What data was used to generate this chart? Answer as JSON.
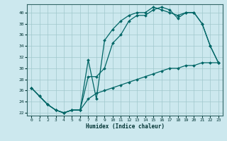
{
  "xlabel": "Humidex (Indice chaleur)",
  "bg_color": "#cce8ee",
  "line_color": "#006666",
  "grid_color": "#a0c8cc",
  "xlim": [
    -0.5,
    23.5
  ],
  "ylim": [
    21.5,
    41.5
  ],
  "yticks": [
    22,
    24,
    26,
    28,
    30,
    32,
    34,
    36,
    38,
    40
  ],
  "xticks": [
    0,
    1,
    2,
    3,
    4,
    5,
    6,
    7,
    8,
    9,
    10,
    11,
    12,
    13,
    14,
    15,
    16,
    17,
    18,
    19,
    20,
    21,
    22,
    23
  ],
  "line1_x": [
    0,
    1,
    2,
    3,
    4,
    5,
    6,
    7,
    8,
    9,
    10,
    11,
    12,
    13,
    14,
    15,
    16,
    17,
    18,
    19,
    20,
    21,
    22,
    23
  ],
  "line1_y": [
    26.5,
    25.0,
    23.5,
    22.5,
    22.0,
    22.5,
    22.5,
    31.5,
    24.5,
    35.0,
    37.0,
    38.5,
    39.5,
    40.0,
    40.0,
    41.0,
    40.5,
    40.0,
    39.5,
    40.0,
    40.0,
    38.0,
    34.0,
    31.0
  ],
  "line2_x": [
    0,
    1,
    2,
    3,
    4,
    5,
    6,
    7,
    8,
    9,
    10,
    11,
    12,
    13,
    14,
    15,
    16,
    17,
    18,
    19,
    20,
    21,
    22,
    23
  ],
  "line2_y": [
    26.5,
    25.0,
    23.5,
    22.5,
    22.0,
    22.5,
    22.5,
    28.5,
    28.5,
    30.0,
    34.5,
    36.0,
    38.5,
    39.5,
    39.5,
    40.5,
    41.0,
    40.5,
    39.0,
    40.0,
    40.0,
    38.0,
    34.0,
    31.0
  ],
  "line3_x": [
    0,
    1,
    2,
    3,
    4,
    5,
    6,
    7,
    8,
    9,
    10,
    11,
    12,
    13,
    14,
    15,
    16,
    17,
    18,
    19,
    20,
    21,
    22,
    23
  ],
  "line3_y": [
    26.5,
    25.0,
    23.5,
    22.5,
    22.0,
    22.5,
    22.5,
    24.5,
    25.5,
    26.0,
    26.5,
    27.0,
    27.5,
    28.0,
    28.5,
    29.0,
    29.5,
    30.0,
    30.0,
    30.5,
    30.5,
    31.0,
    31.0,
    31.0
  ]
}
